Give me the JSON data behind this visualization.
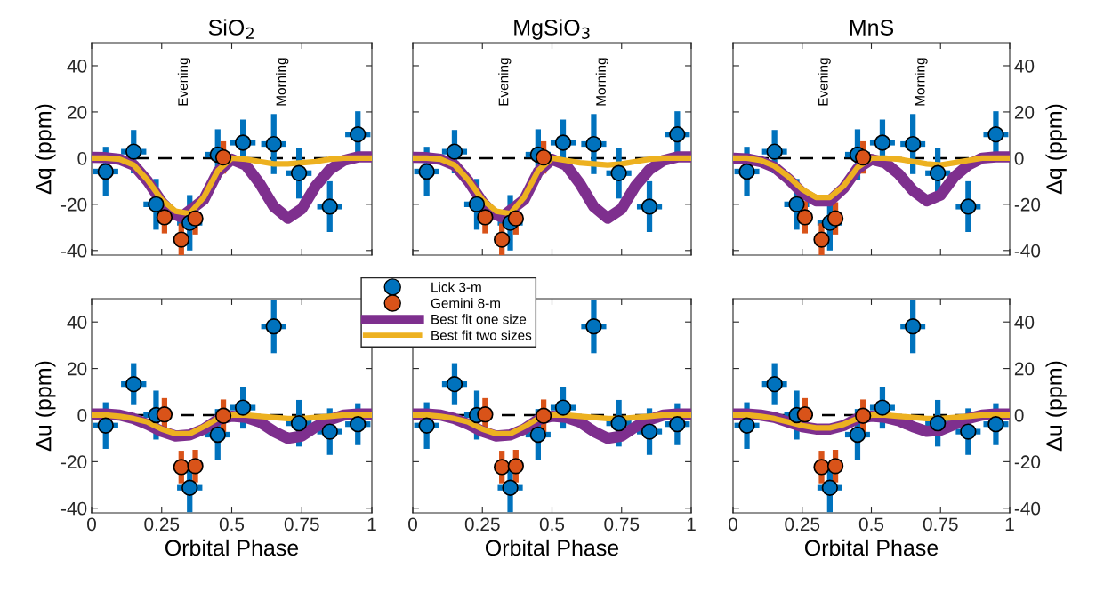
{
  "chart_data": [
    {
      "type": "scatter",
      "title": "SiO$_{2}$",
      "ylabel": "Δq (ppm)",
      "xlim": [
        0,
        1
      ],
      "xticks": [
        0,
        0.25,
        0.5,
        0.75,
        1
      ],
      "ylim": [
        -42,
        50
      ],
      "yticks": [
        -40,
        -20,
        0,
        20,
        40
      ],
      "tick_labels": "y",
      "legend": false,
      "grid": false,
      "ref_lines": [
        {
          "axis": "y",
          "value": 0,
          "color": "#000000",
          "line_style": "dashed"
        }
      ],
      "annotations": [
        "Evening",
        "Morning"
      ],
      "series": [
        {
          "type": "line",
          "color": "#7e2f8e",
          "x": [
            0,
            0.05,
            0.1,
            0.15,
            0.2,
            0.25,
            0.29,
            0.32,
            0.4,
            0.45,
            0.5,
            0.55,
            0.6,
            0.65,
            0.7,
            0.75,
            0.8,
            0.85,
            0.9,
            0.95,
            1
          ],
          "values": [
            0.3,
            0.2,
            -0.5,
            -3,
            -10,
            -19,
            -24,
            -25.5,
            -18,
            -6,
            -0.5,
            -3,
            -11,
            -21,
            -26,
            -22,
            -12,
            -5,
            -1,
            0.5,
            0.5
          ]
        },
        {
          "type": "line",
          "color": "#edb120",
          "x": [
            0,
            0.05,
            0.1,
            0.15,
            0.2,
            0.25,
            0.3,
            0.35,
            0.4,
            0.45,
            0.5,
            0.55,
            0.6,
            0.65,
            0.7,
            0.75,
            0.8,
            0.85,
            0.9,
            0.95,
            1
          ],
          "values": [
            0,
            0,
            -0.5,
            -3,
            -9.5,
            -18,
            -23,
            -24,
            -17,
            -5.5,
            0,
            -0.5,
            -1.5,
            -2.5,
            -2.5,
            -2,
            -1.5,
            -0.5,
            0,
            0,
            0
          ]
        },
        {
          "color": "#0072bd",
          "marker": "circle",
          "x": [
            0.05,
            0.15,
            0.23,
            0.35,
            0.45,
            0.54,
            0.65,
            0.74,
            0.85,
            0.95
          ],
          "values": [
            -5.8,
            2.8,
            -20,
            -28,
            1.5,
            6.7,
            6.1,
            -6.5,
            -21,
            10.3
          ],
          "errors": [
            10.7,
            9.4,
            11,
            12,
            11,
            10,
            13,
            11,
            11,
            10
          ],
          "xerrors": [
            0.045,
            0.045,
            0.045,
            0.045,
            0.045,
            0.045,
            0.045,
            0.045,
            0.045,
            0.045
          ]
        },
        {
          "type": "scatter",
          "color": "#d95319",
          "marker": "circle",
          "x": [
            0.26,
            0.32,
            0.37,
            0.47
          ],
          "values": [
            -25.6,
            -35.3,
            -26.1,
            0.3
          ],
          "errors": [
            7,
            7,
            7,
            7
          ]
        }
      ]
    },
    {
      "type": "scatter",
      "title": "MgSiO$_{3}$",
      "xlim": [
        0,
        1
      ],
      "xticks": [
        0,
        0.25,
        0.5,
        0.75,
        1
      ],
      "ylim": [
        -42,
        50
      ],
      "yticks": [
        -40,
        -20,
        0,
        20,
        40
      ],
      "tick_labels": false,
      "legend": false,
      "grid": false,
      "ref_lines": [
        {
          "axis": "y",
          "value": 0,
          "color": "#000000",
          "line_style": "dashed"
        }
      ],
      "annotations": [
        "Evening",
        "Morning"
      ],
      "series": [
        {
          "type": "line",
          "color": "#7e2f8e",
          "x": [
            0,
            0.05,
            0.1,
            0.15,
            0.2,
            0.25,
            0.29,
            0.32,
            0.4,
            0.45,
            0.5,
            0.55,
            0.6,
            0.65,
            0.7,
            0.75,
            0.8,
            0.85,
            0.9,
            0.95,
            1
          ],
          "values": [
            0.3,
            0.2,
            -0.5,
            -3,
            -10,
            -19,
            -24,
            -25.5,
            -18,
            -6,
            -0.5,
            -3,
            -11,
            -21,
            -26,
            -22,
            -12,
            -5,
            -1,
            0.5,
            0.5
          ]
        },
        {
          "type": "line",
          "color": "#edb120",
          "x": [
            0,
            0.05,
            0.1,
            0.15,
            0.2,
            0.25,
            0.3,
            0.35,
            0.4,
            0.45,
            0.5,
            0.55,
            0.6,
            0.65,
            0.7,
            0.75,
            0.8,
            0.85,
            0.9,
            0.95,
            1
          ],
          "values": [
            0,
            0,
            -0.5,
            -3,
            -9.5,
            -18,
            -23,
            -24,
            -17,
            -5.5,
            0,
            -1,
            -2,
            -2.5,
            -3,
            -2.5,
            -1.5,
            -0.5,
            0,
            0,
            0
          ]
        },
        {
          "color": "#0072bd",
          "marker": "circle",
          "x": [
            0.05,
            0.15,
            0.23,
            0.35,
            0.45,
            0.54,
            0.65,
            0.74,
            0.85,
            0.95
          ],
          "values": [
            -5.8,
            2.8,
            -20,
            -28,
            1.5,
            6.7,
            6.1,
            -6.5,
            -21,
            10.3
          ],
          "errors": [
            10.7,
            9.4,
            11,
            12,
            11,
            10,
            13,
            11,
            11,
            10
          ],
          "xerrors": [
            0.045,
            0.045,
            0.045,
            0.045,
            0.045,
            0.045,
            0.045,
            0.045,
            0.045,
            0.045
          ]
        },
        {
          "type": "scatter",
          "color": "#d95319",
          "marker": "circle",
          "x": [
            0.26,
            0.32,
            0.37,
            0.47
          ],
          "values": [
            -25.6,
            -35.3,
            -26.1,
            0.3
          ],
          "errors": [
            7,
            7,
            7,
            7
          ]
        }
      ]
    },
    {
      "type": "scatter",
      "title": "MnS",
      "y2label": "Δq (ppm)",
      "xlim": [
        0,
        1
      ],
      "xticks": [
        0,
        0.25,
        0.5,
        0.75,
        1
      ],
      "y2lim": [
        -42,
        50
      ],
      "y2ticks": [
        -40,
        -20,
        0,
        20,
        40
      ],
      "tick_labels": "y",
      "legend": false,
      "grid": false,
      "ref_lines": [
        {
          "axis": "y2",
          "value": 0,
          "color": "#000000",
          "line_style": "dashed"
        }
      ],
      "annotations": [
        "Evening",
        "Morning"
      ],
      "series": [
        {
          "type": "line",
          "axis": "y2",
          "color": "#7e2f8e",
          "x": [
            0,
            0.05,
            0.1,
            0.15,
            0.2,
            0.25,
            0.3,
            0.35,
            0.4,
            0.45,
            0.5,
            0.55,
            0.6,
            0.65,
            0.7,
            0.75,
            0.8,
            0.85,
            0.9,
            0.95,
            1
          ],
          "values": [
            0,
            -0.3,
            -1.5,
            -4,
            -9,
            -15,
            -18.5,
            -18.5,
            -13,
            -4.5,
            -0.5,
            -2,
            -7,
            -14,
            -18.5,
            -16,
            -8,
            -3,
            0,
            0.5,
            0.5
          ]
        },
        {
          "type": "line",
          "axis": "y2",
          "color": "#edb120",
          "x": [
            0,
            0.05,
            0.1,
            0.15,
            0.2,
            0.25,
            0.3,
            0.35,
            0.4,
            0.45,
            0.5,
            0.55,
            0.6,
            0.65,
            0.7,
            0.75,
            0.8,
            0.85,
            0.9,
            0.95,
            1
          ],
          "values": [
            0,
            0,
            -1,
            -3.5,
            -8,
            -13.5,
            -17,
            -17,
            -12,
            -4,
            0,
            0,
            -0.5,
            -1.5,
            -2.5,
            -3,
            -2,
            -1,
            0,
            0,
            0
          ]
        },
        {
          "axis": "y2",
          "color": "#0072bd",
          "marker": "circle",
          "x": [
            0.05,
            0.15,
            0.23,
            0.35,
            0.45,
            0.54,
            0.65,
            0.74,
            0.85,
            0.95
          ],
          "values": [
            -5.8,
            2.8,
            -20,
            -28,
            1.5,
            6.7,
            6.1,
            -6.5,
            -21,
            10.3
          ],
          "errors": [
            10.7,
            9.4,
            11,
            12,
            11,
            10,
            13,
            11,
            11,
            10
          ],
          "xerrors": [
            0.045,
            0.045,
            0.045,
            0.045,
            0.045,
            0.045,
            0.045,
            0.045,
            0.045,
            0.045
          ]
        },
        {
          "axis": "y2",
          "color": "#d95319",
          "marker": "circle",
          "x": [
            0.26,
            0.32,
            0.37,
            0.47
          ],
          "values": [
            -25.6,
            -35.3,
            -26.1,
            0.3
          ],
          "errors": [
            7,
            7,
            7,
            7
          ]
        }
      ]
    },
    {
      "type": "scatter",
      "xlabel": "Orbital Phase",
      "ylabel": "Δu (ppm)",
      "xlim": [
        0,
        1
      ],
      "xticks": [
        0,
        0.25,
        0.5,
        0.75,
        1
      ],
      "ylim": [
        -42,
        50
      ],
      "yticks": [
        -40,
        -20,
        0,
        20,
        40
      ],
      "legend": "top right",
      "grid": false,
      "ref_lines": [
        {
          "axis": "y",
          "value": 0,
          "color": "#000000",
          "line_style": "dashed"
        }
      ],
      "series": [
        {
          "name": "Lick 3-m",
          "color": "#0072bd",
          "marker": "circle",
          "x": [
            0.05,
            0.15,
            0.23,
            0.35,
            0.45,
            0.54,
            0.65,
            0.74,
            0.85,
            0.95
          ],
          "values": [
            -4.5,
            13.3,
            0,
            -31.2,
            -8.4,
            3.2,
            38.1,
            -3.5,
            -7.1,
            -3.9
          ],
          "errors": [
            10,
            9,
            10.5,
            10.5,
            11,
            9,
            11.5,
            10,
            10,
            9
          ],
          "xerrors": [
            0.045,
            0.045,
            0.045,
            0.045,
            0.045,
            0.045,
            0.045,
            0.045,
            0.045,
            0.045
          ]
        },
        {
          "name": "Gemini 8-m",
          "color": "#d95319",
          "marker": "circle",
          "x": [
            0.26,
            0.32,
            0.37,
            0.47
          ],
          "values": [
            0.3,
            -22.3,
            -21.9,
            -0.3
          ],
          "errors": [
            7,
            7,
            7,
            7
          ]
        },
        {
          "type": "line",
          "name": "Best fit one size",
          "color": "#7e2f8e",
          "x": [
            0,
            0.05,
            0.1,
            0.15,
            0.2,
            0.25,
            0.3,
            0.35,
            0.4,
            0.45,
            0.5,
            0.55,
            0.6,
            0.65,
            0.7,
            0.75,
            0.8,
            0.85,
            0.9,
            0.95,
            1
          ],
          "values": [
            0.5,
            0.5,
            0,
            -1.5,
            -4,
            -7,
            -9,
            -8.5,
            -6,
            -2,
            -0.5,
            -1,
            -3,
            -7,
            -10,
            -9,
            -5,
            -2,
            0,
            0.5,
            0.5
          ]
        },
        {
          "type": "line",
          "name": "Best fit two sizes",
          "color": "#edb120",
          "x": [
            0,
            0.05,
            0.1,
            0.15,
            0.2,
            0.25,
            0.3,
            0.35,
            0.4,
            0.45,
            0.5,
            0.55,
            0.6,
            0.65,
            0.7,
            0.75,
            0.8,
            0.85,
            0.9,
            0.95,
            1
          ],
          "values": [
            0,
            0,
            -0.5,
            -1.5,
            -3,
            -6,
            -8,
            -8,
            -5,
            -1.5,
            0,
            0,
            -0.5,
            -1,
            -1.5,
            -1.5,
            -1,
            -0.5,
            0,
            0,
            0
          ]
        }
      ]
    },
    {
      "type": "scatter",
      "xlabel": "Orbital Phase",
      "xlim": [
        0,
        1
      ],
      "xticks": [
        0,
        0.25,
        0.5,
        0.75,
        1
      ],
      "ylim": [
        -42,
        50
      ],
      "yticks": [
        -40,
        -20,
        0,
        20,
        40
      ],
      "tick_labels": "x",
      "legend": false,
      "grid": false,
      "ref_lines": [
        {
          "axis": "y",
          "value": 0,
          "color": "#000000",
          "line_style": "dashed"
        }
      ],
      "series": [
        {
          "type": "line",
          "color": "#7e2f8e",
          "x": [
            0,
            0.05,
            0.1,
            0.15,
            0.2,
            0.25,
            0.3,
            0.35,
            0.4,
            0.45,
            0.5,
            0.55,
            0.6,
            0.65,
            0.7,
            0.75,
            0.8,
            0.85,
            0.9,
            0.95,
            1
          ],
          "values": [
            0.5,
            0.5,
            0,
            -1.5,
            -4,
            -7,
            -9,
            -8.5,
            -6,
            -2,
            -0.5,
            -1,
            -3,
            -7,
            -10,
            -9,
            -5,
            -2,
            0,
            0.5,
            0.5
          ]
        },
        {
          "type": "line",
          "color": "#edb120",
          "x": [
            0,
            0.05,
            0.1,
            0.15,
            0.2,
            0.25,
            0.3,
            0.35,
            0.4,
            0.45,
            0.5,
            0.55,
            0.6,
            0.65,
            0.7,
            0.75,
            0.8,
            0.85,
            0.9,
            0.95,
            1
          ],
          "values": [
            0,
            0,
            -0.5,
            -1.5,
            -3,
            -6,
            -8,
            -8,
            -5,
            -1.5,
            0,
            0,
            -0.5,
            -1,
            -1.5,
            -1.5,
            -1,
            -0.5,
            0,
            0,
            0
          ]
        },
        {
          "color": "#0072bd",
          "marker": "circle",
          "x": [
            0.05,
            0.15,
            0.23,
            0.35,
            0.45,
            0.54,
            0.65,
            0.74,
            0.85,
            0.95
          ],
          "values": [
            -4.5,
            13.3,
            0,
            -31.2,
            -8.4,
            3.2,
            38.1,
            -3.5,
            -7.1,
            -3.9
          ],
          "errors": [
            10,
            9,
            10.5,
            10.5,
            11,
            9,
            11.5,
            10,
            10,
            9
          ],
          "xerrors": [
            0.045,
            0.045,
            0.045,
            0.045,
            0.045,
            0.045,
            0.045,
            0.045,
            0.045,
            0.045
          ]
        },
        {
          "color": "#d95319",
          "marker": "circle",
          "x": [
            0.26,
            0.32,
            0.37,
            0.47
          ],
          "values": [
            0.3,
            -22.3,
            -21.9,
            -0.3
          ],
          "errors": [
            7,
            7,
            7,
            7
          ]
        }
      ]
    },
    {
      "type": "scatter",
      "xlabel": "Orbital Phase",
      "y2label": "Δu (ppm)",
      "xlim": [
        0,
        1
      ],
      "xticks": [
        0,
        0.25,
        0.5,
        0.75,
        1
      ],
      "y2lim": [
        -42,
        50
      ],
      "y2ticks": [
        -40,
        -20,
        0,
        20,
        40
      ],
      "legend": false,
      "grid": false,
      "ref_lines": [
        {
          "axis": "y2",
          "value": 0,
          "color": "#000000",
          "line_style": "dashed"
        }
      ],
      "series": [
        {
          "type": "line",
          "axis": "y2",
          "color": "#7e2f8e",
          "x": [
            0,
            0.05,
            0.1,
            0.15,
            0.2,
            0.25,
            0.3,
            0.35,
            0.4,
            0.45,
            0.5,
            0.55,
            0.6,
            0.65,
            0.7,
            0.75,
            0.8,
            0.85,
            0.9,
            0.95,
            1
          ],
          "values": [
            0.5,
            0.5,
            0,
            -1,
            -3,
            -5,
            -6,
            -6,
            -4.5,
            -1.5,
            -0.5,
            -1,
            -2.5,
            -5,
            -7,
            -6.5,
            -4,
            -1.5,
            0,
            0.5,
            0.5
          ]
        },
        {
          "type": "line",
          "axis": "y2",
          "color": "#edb120",
          "x": [
            0,
            0.05,
            0.1,
            0.15,
            0.2,
            0.25,
            0.3,
            0.35,
            0.4,
            0.45,
            0.5,
            0.55,
            0.6,
            0.65,
            0.7,
            0.75,
            0.8,
            0.85,
            0.9,
            0.95,
            1
          ],
          "values": [
            0,
            0,
            -0.5,
            -1.5,
            -3,
            -4.5,
            -5.5,
            -5.5,
            -4,
            -1.5,
            0,
            0,
            -0.5,
            -1,
            -1.5,
            -1.5,
            -1,
            -0.5,
            0,
            0,
            0
          ]
        },
        {
          "axis": "y2",
          "color": "#0072bd",
          "marker": "circle",
          "x": [
            0.05,
            0.15,
            0.23,
            0.35,
            0.45,
            0.54,
            0.65,
            0.74,
            0.85,
            0.95
          ],
          "values": [
            -4.5,
            13.3,
            0,
            -31.2,
            -8.4,
            3.2,
            38.1,
            -3.5,
            -7.1,
            -3.9
          ],
          "errors": [
            10,
            9,
            10.5,
            10.5,
            11,
            9,
            11.5,
            10,
            10,
            9
          ],
          "xerrors": [
            0.045,
            0.045,
            0.045,
            0.045,
            0.045,
            0.045,
            0.045,
            0.045,
            0.045,
            0.045
          ]
        },
        {
          "axis": "y2",
          "color": "#d95319",
          "marker": "circle",
          "x": [
            0.26,
            0.32,
            0.37,
            0.47
          ],
          "values": [
            0.3,
            -22.3,
            -21.9,
            -0.3
          ],
          "errors": [
            7,
            7,
            7,
            7
          ]
        }
      ]
    }
  ]
}
